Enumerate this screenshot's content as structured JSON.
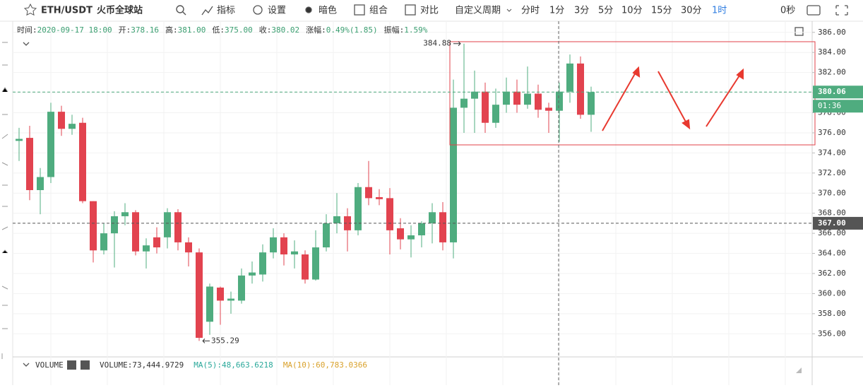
{
  "toolbar": {
    "symbol": "ETH/USDT",
    "exchange": "火币全球站",
    "items": [
      "指标",
      "设置",
      "暗色",
      "组合",
      "对比",
      "自定义周期",
      "分时",
      "1分",
      "3分",
      "5分",
      "10分",
      "15分",
      "30分",
      "1时",
      "0秒"
    ],
    "active": "1时"
  },
  "info": [
    {
      "label": "时间:",
      "value": "2020-09-17 18:00"
    },
    {
      "label": "开:",
      "value": "378.16"
    },
    {
      "label": "高:",
      "value": "381.00"
    },
    {
      "label": "低:",
      "value": "375.00"
    },
    {
      "label": "收:",
      "value": "380.02"
    },
    {
      "label": "涨幅:",
      "value": "0.49%(1.85)"
    },
    {
      "label": "振幅:",
      "value": "1.59%"
    }
  ],
  "volume_panel": {
    "name": "VOLUME",
    "items": [
      {
        "text": "VOLUME:73,444.9729",
        "color": "#333333"
      },
      {
        "text": "MA(5):48,663.6218",
        "color": "#2aa89a"
      },
      {
        "text": "MA(10):60,783.0366",
        "color": "#d9a12b"
      }
    ]
  },
  "chart_data": {
    "type": "candlestick",
    "up_color": "#4fac7f",
    "down_color": "#e2434f",
    "grid": true,
    "open": [
      375.2,
      375.5,
      370.3,
      371.6,
      378.1,
      376.4,
      377.0,
      369.2,
      364.3,
      366.0,
      367.7,
      368.1,
      364.2,
      365.6,
      365.6,
      368.1,
      365.1,
      364.1,
      357.2,
      360.6,
      359.3,
      359.3,
      361.8,
      361.9,
      364.1,
      365.6,
      363.9,
      363.9,
      361.4,
      364.6,
      367.0,
      367.7,
      366.3,
      370.6,
      369.6,
      369.5,
      366.5,
      365.4,
      365.8,
      367.0,
      368.1,
      365.1,
      378.5,
      379.4,
      380.1,
      377.0,
      378.8,
      380.1,
      378.8,
      379.9,
      378.5,
      378.2,
      380.1,
      382.9,
      377.8
    ],
    "high": [
      376.5,
      376.7,
      372.5,
      379.0,
      378.7,
      377.8,
      377.5,
      369.2,
      367.0,
      368.2,
      369.0,
      368.3,
      365.5,
      366.6,
      368.5,
      368.4,
      365.6,
      364.5,
      361.0,
      360.7,
      360.2,
      362.5,
      363.2,
      364.9,
      366.5,
      366.0,
      365.3,
      364.3,
      366.3,
      367.9,
      370.0,
      368.5,
      371.0,
      373.2,
      370.4,
      370.5,
      367.5,
      366.8,
      367.2,
      369.0,
      369.1,
      381.3,
      384.88,
      382.2,
      381.0,
      380.4,
      381.5,
      381.3,
      382.6,
      380.8,
      379.0,
      381.0,
      383.8,
      383.6,
      380.6
    ],
    "low": [
      373.2,
      369.3,
      367.9,
      371.0,
      375.7,
      375.8,
      369.0,
      363.1,
      363.9,
      362.6,
      366.8,
      363.8,
      362.5,
      364.0,
      364.5,
      364.3,
      362.7,
      355.29,
      355.9,
      356.9,
      358.0,
      359.0,
      361.0,
      361.2,
      363.5,
      362.8,
      362.5,
      361.0,
      361.3,
      364.2,
      366.0,
      364.2,
      365.8,
      368.8,
      368.8,
      363.9,
      364.4,
      363.6,
      364.6,
      365.0,
      364.3,
      363.5,
      376.0,
      376.0,
      376.0,
      376.5,
      378.0,
      378.0,
      378.4,
      377.5,
      376.0,
      375.1,
      379.0,
      377.4,
      376.1
    ],
    "close": [
      375.4,
      370.3,
      371.6,
      378.1,
      376.4,
      376.9,
      369.2,
      364.3,
      366.0,
      367.7,
      368.1,
      364.2,
      364.8,
      364.6,
      368.1,
      365.1,
      364.1,
      355.6,
      360.7,
      359.3,
      359.5,
      361.8,
      362.1,
      364.1,
      365.6,
      363.9,
      364.2,
      361.4,
      364.6,
      367.0,
      367.7,
      366.3,
      370.6,
      369.5,
      369.4,
      366.3,
      365.4,
      365.8,
      367.0,
      368.1,
      365.1,
      378.5,
      379.4,
      380.1,
      377.0,
      378.8,
      380.1,
      378.8,
      379.9,
      378.3,
      378.2,
      380.1,
      382.9,
      377.8,
      380.06
    ],
    "ylim": [
      353.7,
      386.9
    ],
    "yticks": [
      {
        "value": 356,
        "label": "356.00"
      },
      {
        "value": 358,
        "label": "358.00"
      },
      {
        "value": 360,
        "label": "360.00"
      },
      {
        "value": 362,
        "label": "362.00"
      },
      {
        "value": 364,
        "label": "364.00"
      },
      {
        "value": 366,
        "label": "366.00"
      },
      {
        "value": 368,
        "label": "368.00"
      },
      {
        "value": 370,
        "label": "370.00"
      },
      {
        "value": 372,
        "label": "372.00"
      },
      {
        "value": 374,
        "label": "374.00"
      },
      {
        "value": 376,
        "label": "376.00"
      },
      {
        "value": 378,
        "label": "378.00"
      },
      {
        "value": 380,
        "label": "380.00"
      },
      {
        "value": 382,
        "label": "382.00"
      },
      {
        "value": 384,
        "label": "384.00"
      },
      {
        "value": 386,
        "label": "386.00"
      }
    ],
    "price_lines": [
      {
        "value": 380.06,
        "countdown": "01:36",
        "color": "#4fac7f"
      },
      {
        "value": 367,
        "label": "367.00",
        "color": "#555555"
      }
    ]
  }
}
